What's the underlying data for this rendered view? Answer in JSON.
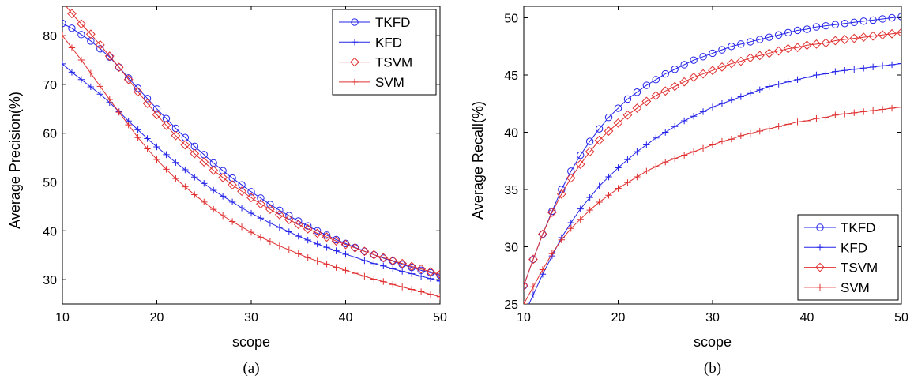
{
  "colors": {
    "TKFD": "#2323e8",
    "KFD": "#2323e8",
    "TSVM": "#e03030",
    "SVM": "#e03030"
  },
  "chart_data": [
    {
      "type": "line",
      "caption": "(a)",
      "xlabel": "scope",
      "ylabel": "Average Precision(%)",
      "xlim": [
        10,
        50
      ],
      "ylim": [
        25,
        86
      ],
      "xticks": [
        10,
        20,
        30,
        40,
        50
      ],
      "yticks": [
        30,
        40,
        50,
        60,
        70,
        80
      ],
      "grid": false,
      "legend_position": "top-right",
      "x": [
        10,
        11,
        12,
        13,
        14,
        15,
        16,
        17,
        18,
        19,
        20,
        21,
        22,
        23,
        24,
        25,
        26,
        27,
        28,
        29,
        30,
        31,
        32,
        33,
        34,
        35,
        36,
        37,
        38,
        39,
        40,
        41,
        42,
        43,
        44,
        45,
        46,
        47,
        48,
        49,
        50
      ],
      "series": [
        {
          "name": "TKFD",
          "marker": "circle",
          "values": [
            82.5,
            81.5,
            80.2,
            78.9,
            77.3,
            75.6,
            73.5,
            71.3,
            69.2,
            67.1,
            65.0,
            63.0,
            61.0,
            59.1,
            57.3,
            55.6,
            53.9,
            52.3,
            50.8,
            49.4,
            48.0,
            46.7,
            45.4,
            44.2,
            43.1,
            42.0,
            41.0,
            40.0,
            39.1,
            38.2,
            37.4,
            36.6,
            35.8,
            35.1,
            34.4,
            33.8,
            33.1,
            32.5,
            31.9,
            31.4,
            30.9
          ]
        },
        {
          "name": "KFD",
          "marker": "plus",
          "values": [
            74.2,
            72.5,
            71.0,
            69.5,
            68.0,
            66.3,
            64.4,
            62.5,
            60.7,
            58.9,
            57.2,
            55.6,
            54.0,
            52.5,
            51.0,
            49.7,
            48.3,
            47.1,
            45.9,
            44.7,
            43.6,
            42.6,
            41.6,
            40.7,
            39.8,
            38.9,
            38.1,
            37.3,
            36.6,
            35.9,
            35.2,
            34.6,
            33.9,
            33.3,
            32.8,
            32.2,
            31.7,
            31.2,
            30.7,
            30.2,
            29.7
          ]
        },
        {
          "name": "TSVM",
          "marker": "diamond",
          "values": [
            87.0,
            84.5,
            82.4,
            80.3,
            78.1,
            75.8,
            73.5,
            71.0,
            68.5,
            66.1,
            63.8,
            61.6,
            59.5,
            57.6,
            55.8,
            54.1,
            52.4,
            50.9,
            49.4,
            48.1,
            46.8,
            45.5,
            44.4,
            43.3,
            42.3,
            41.3,
            40.4,
            39.5,
            38.7,
            37.9,
            37.2,
            36.5,
            35.8,
            35.1,
            34.5,
            33.9,
            33.3,
            32.7,
            32.2,
            31.6,
            31.1
          ]
        },
        {
          "name": "SVM",
          "marker": "plus",
          "values": [
            80.0,
            77.5,
            75.0,
            72.3,
            69.6,
            66.9,
            64.3,
            61.7,
            59.1,
            56.8,
            54.6,
            52.6,
            50.7,
            49.0,
            47.4,
            45.9,
            44.4,
            43.1,
            41.9,
            40.8,
            39.7,
            38.7,
            37.8,
            36.9,
            36.1,
            35.3,
            34.5,
            33.8,
            33.2,
            32.5,
            31.9,
            31.3,
            30.7,
            30.1,
            29.6,
            29.0,
            28.5,
            28.0,
            27.5,
            27.0,
            26.5
          ]
        }
      ]
    },
    {
      "type": "line",
      "caption": "(b)",
      "xlabel": "scope",
      "ylabel": "Average Recall(%)",
      "xlim": [
        10,
        50
      ],
      "ylim": [
        25,
        51
      ],
      "xticks": [
        10,
        20,
        30,
        40,
        50
      ],
      "yticks": [
        25,
        30,
        35,
        40,
        45,
        50
      ],
      "grid": false,
      "legend_position": "bottom-right",
      "x": [
        10,
        11,
        12,
        13,
        14,
        15,
        16,
        17,
        18,
        19,
        20,
        21,
        22,
        23,
        24,
        25,
        26,
        27,
        28,
        29,
        30,
        31,
        32,
        33,
        34,
        35,
        36,
        37,
        38,
        39,
        40,
        41,
        42,
        43,
        44,
        45,
        46,
        47,
        48,
        49,
        50
      ],
      "series": [
        {
          "name": "TKFD",
          "marker": "circle",
          "values": [
            26.6,
            28.9,
            31.1,
            33.1,
            35.0,
            36.6,
            38.0,
            39.2,
            40.3,
            41.3,
            42.1,
            42.9,
            43.5,
            44.1,
            44.6,
            45.1,
            45.5,
            45.9,
            46.3,
            46.6,
            46.9,
            47.2,
            47.5,
            47.7,
            47.9,
            48.1,
            48.3,
            48.5,
            48.7,
            48.9,
            49.0,
            49.2,
            49.3,
            49.4,
            49.5,
            49.6,
            49.7,
            49.8,
            49.9,
            50.0,
            50.1
          ]
        },
        {
          "name": "KFD",
          "marker": "plus",
          "values": [
            24.0,
            25.8,
            27.6,
            29.2,
            30.8,
            32.1,
            33.3,
            34.3,
            35.3,
            36.1,
            36.9,
            37.6,
            38.3,
            38.9,
            39.5,
            40.0,
            40.5,
            41.0,
            41.4,
            41.8,
            42.2,
            42.5,
            42.8,
            43.1,
            43.4,
            43.7,
            44.0,
            44.2,
            44.4,
            44.6,
            44.8,
            45.0,
            45.1,
            45.3,
            45.4,
            45.5,
            45.6,
            45.7,
            45.8,
            45.9,
            46.0
          ]
        },
        {
          "name": "TSVM",
          "marker": "diamond",
          "values": [
            26.6,
            28.9,
            31.1,
            33.0,
            34.6,
            36.0,
            37.2,
            38.3,
            39.3,
            40.1,
            40.8,
            41.5,
            42.1,
            42.7,
            43.2,
            43.6,
            44.0,
            44.4,
            44.8,
            45.1,
            45.4,
            45.7,
            46.0,
            46.2,
            46.5,
            46.7,
            46.9,
            47.1,
            47.3,
            47.4,
            47.6,
            47.7,
            47.8,
            48.0,
            48.1,
            48.2,
            48.3,
            48.4,
            48.5,
            48.6,
            48.7
          ]
        },
        {
          "name": "SVM",
          "marker": "plus",
          "values": [
            25.0,
            26.5,
            28.0,
            29.4,
            30.6,
            31.6,
            32.4,
            33.2,
            33.9,
            34.5,
            35.1,
            35.6,
            36.1,
            36.6,
            37.0,
            37.4,
            37.7,
            38.0,
            38.3,
            38.6,
            38.9,
            39.2,
            39.4,
            39.7,
            39.9,
            40.1,
            40.3,
            40.5,
            40.7,
            40.9,
            41.0,
            41.2,
            41.3,
            41.5,
            41.6,
            41.7,
            41.8,
            41.9,
            42.0,
            42.1,
            42.2
          ]
        }
      ]
    }
  ]
}
